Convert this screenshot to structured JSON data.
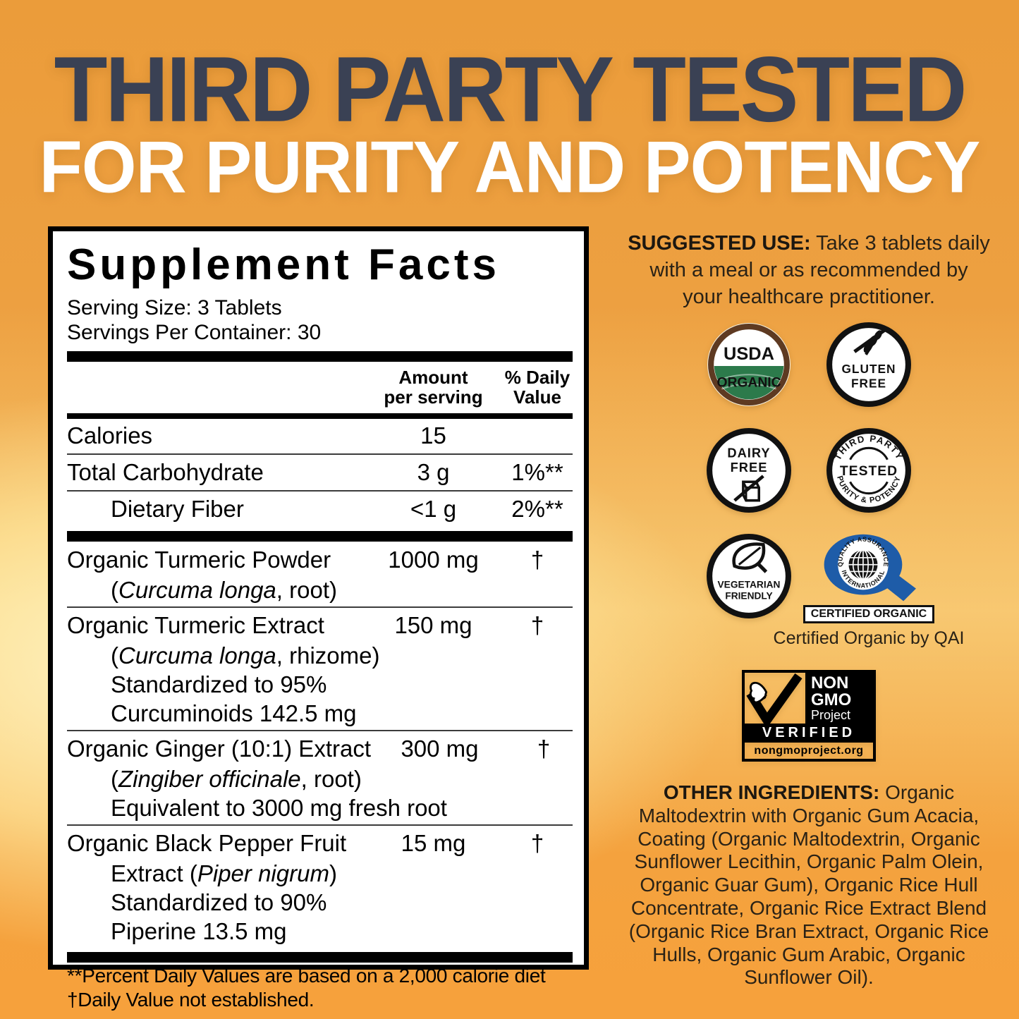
{
  "header": {
    "line1": "THIRD PARTY TESTED",
    "line2": "FOR PURITY AND POTENCY"
  },
  "colors": {
    "background_orange": "#EE9E3C",
    "pale_center": "#FDEFB5",
    "header_navy": "#3A4154",
    "header_white": "#FFFFFF",
    "usda_green": "#2C7A4B",
    "usda_brown": "#5E3A22",
    "qai_blue": "#1E5CA8"
  },
  "supplement_facts": {
    "title": "Supplement Facts",
    "serving_size": "Serving Size: 3 Tablets",
    "servings_per_container": "Servings Per Container: 30",
    "columns": {
      "amount_line1": "Amount",
      "amount_line2": "per serving",
      "dv_line1": "% Daily",
      "dv_line2": "Value"
    },
    "nutrients": [
      {
        "name": "Calories",
        "amount": "15",
        "dv": "",
        "indent": false
      },
      {
        "name": "Total Carbohydrate",
        "amount": "3 g",
        "dv": "1%**",
        "indent": false
      },
      {
        "name": "Dietary Fiber",
        "amount": "<1 g",
        "dv": "2%**",
        "indent": true
      }
    ],
    "ingredients": [
      {
        "name": "Organic Turmeric Powder",
        "amount": "1000 mg",
        "dv": "†",
        "sublines": [
          [
            {
              "t": "("
            },
            {
              "t": "Curcuma longa",
              "i": true
            },
            {
              "t": ", root)"
            }
          ]
        ]
      },
      {
        "name": "Organic Turmeric Extract",
        "amount": "150 mg",
        "dv": "†",
        "sublines": [
          [
            {
              "t": "("
            },
            {
              "t": "Curcuma longa",
              "i": true
            },
            {
              "t": ", rhizome)"
            }
          ],
          [
            {
              "t": "Standardized to 95%"
            }
          ],
          [
            {
              "t": "Curcuminoids 142.5 mg"
            }
          ]
        ]
      },
      {
        "name": "Organic Ginger (10:1) Extract",
        "amount": "300 mg",
        "dv": "†",
        "sublines": [
          [
            {
              "t": "("
            },
            {
              "t": "Zingiber officinale",
              "i": true
            },
            {
              "t": ", root)"
            }
          ],
          [
            {
              "t": "Equivalent to 3000 mg fresh root"
            }
          ]
        ]
      },
      {
        "name": "Organic Black Pepper Fruit",
        "amount": "15 mg",
        "dv": "†",
        "sublines": [
          [
            {
              "t": "Extract ("
            },
            {
              "t": "Piper nigrum",
              "i": true
            },
            {
              "t": ")"
            }
          ],
          [
            {
              "t": "Standardized to 90%"
            }
          ],
          [
            {
              "t": "Piperine 13.5 mg"
            }
          ]
        ]
      }
    ],
    "footnote1": "**Percent Daily Values are based on a 2,000 calorie diet",
    "footnote2": "†Daily Value not established."
  },
  "suggested_use": {
    "label": "SUGGESTED USE:",
    "lines": [
      " Take 3 tablets daily",
      "with a meal or as recommended by",
      "your healthcare practitioner."
    ]
  },
  "badges": {
    "usda": {
      "top": "USDA",
      "bottom": "ORGANIC"
    },
    "gluten": {
      "line1": "GLUTEN",
      "line2": "FREE"
    },
    "dairy": {
      "line1": "DAIRY",
      "line2": "FREE"
    },
    "third_party": {
      "arc_top": "THIRD PARTY",
      "center": "TESTED",
      "arc_bottom": "PURITY & POTENCY"
    },
    "vegetarian": {
      "line1": "VEGETARIAN",
      "line2": "FRIENDLY"
    },
    "qai": {
      "arc_top": "QUALITY ASSURANCE",
      "arc_bottom": "INTERNATIONAL",
      "box": "CERTIFIED ORGANIC",
      "caption": "Certified Organic by QAI"
    },
    "non_gmo": {
      "line1": "NON",
      "line2": "GMO",
      "line3": "Project",
      "verified": "VERIFIED",
      "url": "nongmoproject.org"
    }
  },
  "other_ingredients": {
    "label": "OTHER INGREDIENTS:",
    "lines": [
      " Organic",
      "Maltodextrin with Organic Gum Acacia,",
      "Coating (Organic Maltodextrin, Organic",
      "Sunflower Lecithin, Organic Palm Olein,",
      "Organic Guar Gum), Organic Rice Hull",
      "Concentrate, Organic Rice Extract Blend",
      "(Organic Rice Bran Extract, Organic Rice",
      "Hulls, Organic Gum Arabic, Organic",
      "Sunflower Oil)."
    ]
  }
}
